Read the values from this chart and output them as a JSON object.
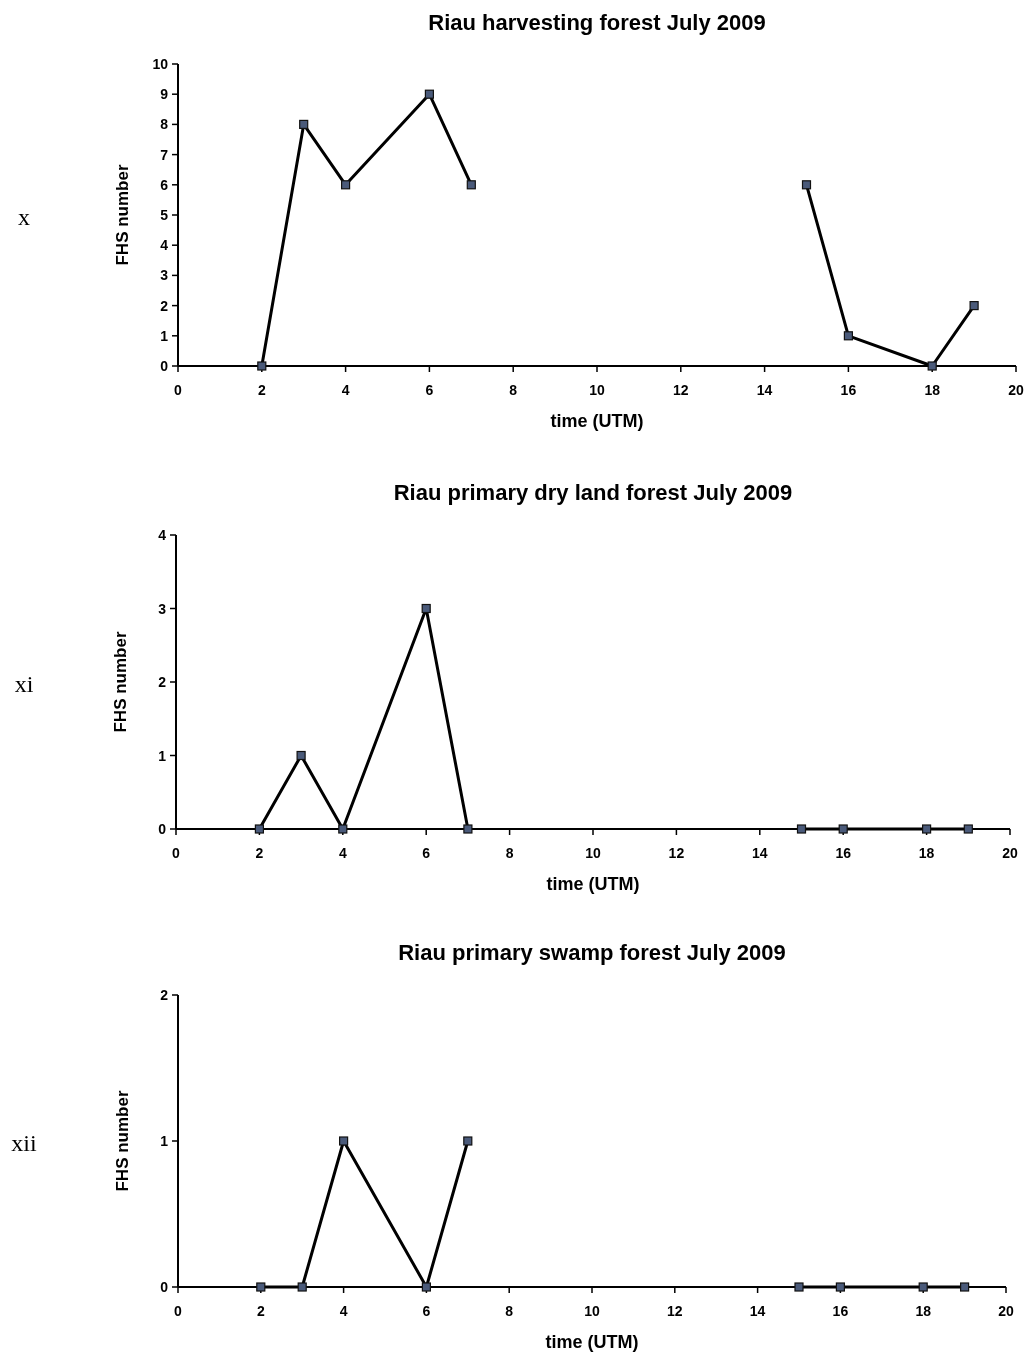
{
  "chart_data": [
    {
      "type": "line",
      "title": "Riau harvesting  forest July 2009",
      "xlabel": "time (UTM)",
      "ylabel": "FHS number",
      "annotations": [
        "x"
      ],
      "xlim": [
        0,
        20
      ],
      "xticks": [
        0,
        2,
        4,
        6,
        8,
        10,
        12,
        14,
        16,
        18,
        20
      ],
      "ylim": [
        0,
        10
      ],
      "yticks": [
        0,
        1,
        2,
        3,
        4,
        5,
        6,
        7,
        8,
        9,
        10
      ],
      "marker": "square",
      "line_style": "solid",
      "series": [
        {
          "color": "#000000",
          "x": [
            2,
            3,
            4,
            6,
            7
          ],
          "values": [
            0,
            8,
            6,
            9,
            6
          ]
        },
        {
          "color": "#000000",
          "x": [
            15,
            16,
            18,
            19
          ],
          "values": [
            6,
            1,
            0,
            2
          ]
        }
      ]
    },
    {
      "type": "line",
      "title": "Riau primary dry land forest July 2009",
      "xlabel": "time (UTM)",
      "ylabel": "FHS number",
      "annotations": [
        "xi"
      ],
      "xlim": [
        0,
        20
      ],
      "xticks": [
        0,
        2,
        4,
        6,
        8,
        10,
        12,
        14,
        16,
        18,
        20
      ],
      "ylim": [
        0,
        4
      ],
      "yticks": [
        0,
        1,
        2,
        3,
        4
      ],
      "marker": "square",
      "line_style": "solid",
      "series": [
        {
          "color": "#000000",
          "x": [
            2,
            3,
            4,
            6,
            7
          ],
          "values": [
            0,
            1,
            0,
            3,
            0
          ]
        },
        {
          "color": "#000000",
          "x": [
            15,
            16,
            18,
            19
          ],
          "values": [
            0,
            0,
            0,
            0
          ]
        }
      ]
    },
    {
      "type": "line",
      "title": "Riau primary swamp forest July 2009",
      "xlabel": "time (UTM)",
      "ylabel": "FHS number",
      "annotations": [
        "xii"
      ],
      "xlim": [
        0,
        20
      ],
      "xticks": [
        0,
        2,
        4,
        6,
        8,
        10,
        12,
        14,
        16,
        18,
        20
      ],
      "ylim": [
        0,
        2
      ],
      "yticks": [
        0,
        1,
        2
      ],
      "marker": "square",
      "line_style": "solid",
      "series": [
        {
          "color": "#000000",
          "x": [
            2,
            3,
            4,
            6,
            7
          ],
          "values": [
            0,
            0,
            1,
            0,
            1
          ]
        },
        {
          "color": "#000000",
          "x": [
            15,
            16,
            18,
            19
          ],
          "values": [
            0,
            0,
            0,
            0
          ]
        }
      ]
    }
  ]
}
